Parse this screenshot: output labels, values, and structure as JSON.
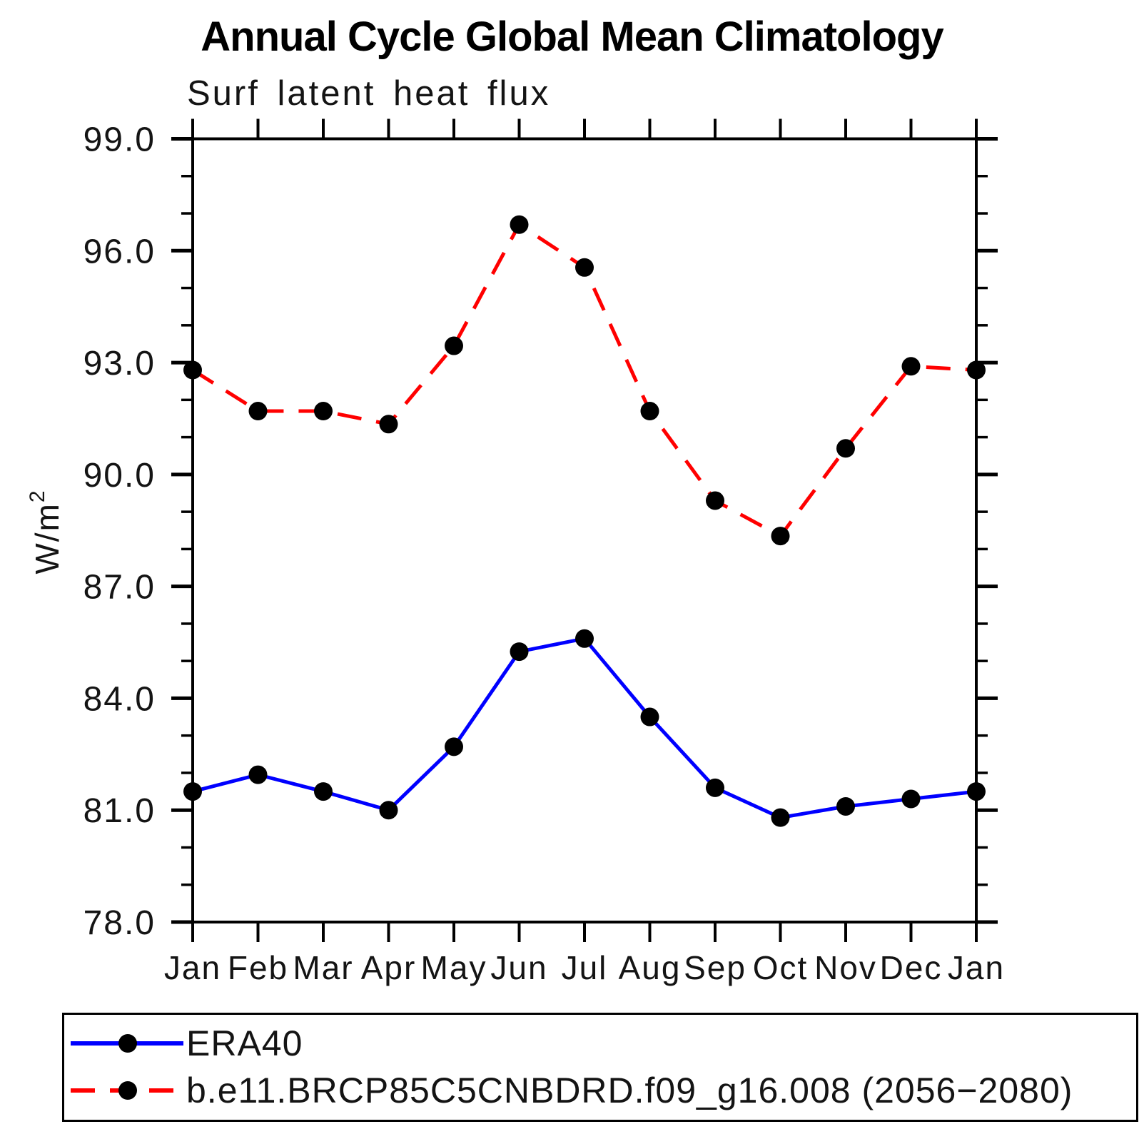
{
  "page": {
    "title": "Annual Cycle Global Mean Climatology",
    "subtitle": "Surf latent heat flux"
  },
  "chart_data": {
    "type": "line",
    "title": "Annual Cycle Global Mean Climatology",
    "subtitle": "Surf latent heat flux",
    "ylabel": "W/m²",
    "ylabel_base": "W/m",
    "ylabel_exponent": "2",
    "categories": [
      "Jan",
      "Feb",
      "Mar",
      "Apr",
      "May",
      "Jun",
      "Jul",
      "Aug",
      "Sep",
      "Oct",
      "Nov",
      "Dec",
      "Jan"
    ],
    "ylim": [
      78.0,
      99.0
    ],
    "ytick_major": [
      78,
      81,
      84,
      87,
      90,
      93,
      96,
      99
    ],
    "ytick_labels": [
      "78.0",
      "81.0",
      "84.0",
      "87.0",
      "90.0",
      "93.0",
      "96.0",
      "99.0"
    ],
    "ytick_minor_step": 1.0,
    "grid": false,
    "legend_position": "bottom-box",
    "axis_color": "#000000",
    "series": [
      {
        "name": "ERA40",
        "color": "#0000ff",
        "style": "solid",
        "marker": "circle",
        "marker_color": "#000000",
        "values": [
          81.5,
          81.95,
          81.5,
          81.0,
          82.7,
          85.25,
          85.6,
          83.5,
          81.6,
          80.8,
          81.1,
          81.3,
          81.5
        ]
      },
      {
        "name": "b.e11.BRCP85C5CNBDRD.f09_g16.008 (2056−2080)",
        "color": "#ff0000",
        "style": "dashed",
        "marker": "circle",
        "marker_color": "#000000",
        "values": [
          92.8,
          91.7,
          91.7,
          91.35,
          93.45,
          96.7,
          95.55,
          91.7,
          89.3,
          88.35,
          90.7,
          92.9,
          92.8
        ]
      }
    ]
  }
}
